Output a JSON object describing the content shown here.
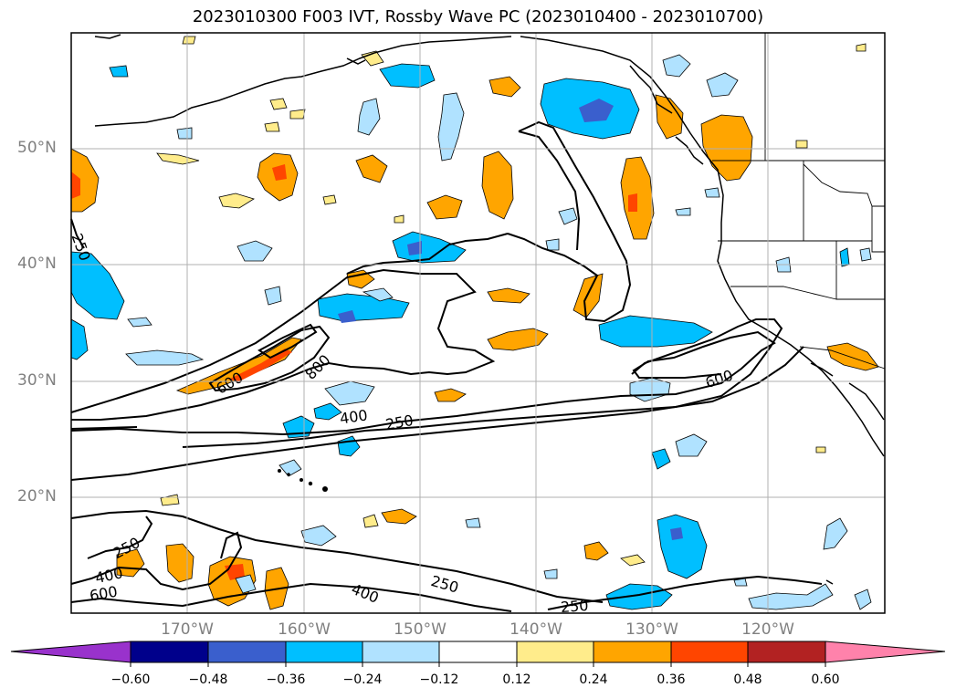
{
  "title": "2023010300 F003 IVT, Rossby Wave PC (2023010400 - 2023010700)",
  "map": {
    "lat_labels": [
      "50°N",
      "40°N",
      "30°N",
      "20°N"
    ],
    "lon_labels": [
      "170°W",
      "160°W",
      "150°W",
      "140°W",
      "130°W",
      "120°W"
    ],
    "contour_levels": [
      250,
      400,
      600,
      800
    ],
    "contour_labels": [
      "250",
      "600",
      "800",
      "600",
      "400",
      "250",
      "250",
      "400",
      "600",
      "400",
      "250",
      "250"
    ]
  },
  "colorbar": {
    "ticks": [
      "−0.60",
      "−0.48",
      "−0.36",
      "−0.24",
      "−0.12",
      "0.12",
      "0.24",
      "0.36",
      "0.48",
      "0.60"
    ],
    "colors": [
      "#9932cc",
      "#00008b",
      "#3a5fcd",
      "#00bfff",
      "#b0e2ff",
      "#ffffff",
      "#ffec8b",
      "#ffa500",
      "#ff4500",
      "#b22222",
      "#ff82ab"
    ]
  }
}
